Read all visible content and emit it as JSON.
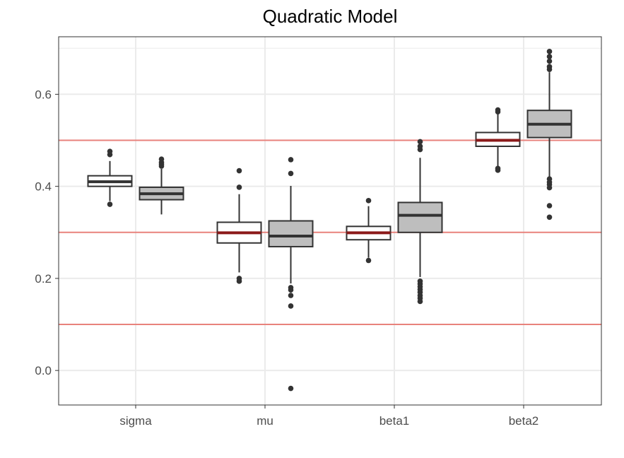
{
  "chart_data": {
    "type": "boxplot",
    "title": "Quadratic Model",
    "xlabel": "",
    "ylabel": "",
    "ylim": [
      -0.075,
      0.725
    ],
    "y_ticks": [
      0.0,
      0.2,
      0.4,
      0.6
    ],
    "y_tick_labels": [
      "0.0",
      "0.2",
      "0.4",
      "0.6"
    ],
    "categories": [
      "sigma",
      "mu",
      "beta1",
      "beta2"
    ],
    "grid": true,
    "reference_lines": [
      0.5,
      0.3,
      0.1
    ],
    "colors": {
      "box_fill_white": "#ffffff",
      "box_fill_grey": "#bebebe",
      "box_stroke": "#333333",
      "reference_line": "#e8827c",
      "true_value_median": "#8b1a1a",
      "grid": "#ebebeb",
      "panel_border": "#333333"
    },
    "series": [
      {
        "name": "white",
        "fill": "#ffffff",
        "boxes": [
          {
            "category": "sigma",
            "q1": 0.4,
            "median": 0.41,
            "q3": 0.423,
            "whisker_low": 0.368,
            "whisker_high": 0.455,
            "outliers": [
              0.361,
              0.469,
              0.476
            ],
            "median_color": "#333333"
          },
          {
            "category": "mu",
            "q1": 0.277,
            "median": 0.299,
            "q3": 0.322,
            "whisker_low": 0.213,
            "whisker_high": 0.383,
            "outliers": [
              0.194,
              0.2,
              0.398,
              0.434
            ],
            "median_color": "#8b1a1a"
          },
          {
            "category": "beta1",
            "q1": 0.284,
            "median": 0.299,
            "q3": 0.313,
            "whisker_low": 0.245,
            "whisker_high": 0.357,
            "outliers": [
              0.239,
              0.369
            ],
            "median_color": "#8b1a1a"
          },
          {
            "category": "beta2",
            "q1": 0.487,
            "median": 0.5,
            "q3": 0.517,
            "whisker_low": 0.443,
            "whisker_high": 0.557,
            "outliers": [
              0.435,
              0.439,
              0.562,
              0.566
            ],
            "median_color": "#8b1a1a"
          }
        ]
      },
      {
        "name": "grey",
        "fill": "#bebebe",
        "boxes": [
          {
            "category": "sigma",
            "q1": 0.371,
            "median": 0.384,
            "q3": 0.398,
            "whisker_low": 0.339,
            "whisker_high": 0.438,
            "outliers": [
              0.444,
              0.448,
              0.452,
              0.459
            ],
            "median_color": "#333333"
          },
          {
            "category": "mu",
            "q1": 0.269,
            "median": 0.292,
            "q3": 0.325,
            "whisker_low": 0.189,
            "whisker_high": 0.401,
            "outliers": [
              -0.039,
              0.14,
              0.163,
              0.175,
              0.18,
              0.428,
              0.458
            ],
            "median_color": "#333333"
          },
          {
            "category": "beta1",
            "q1": 0.3,
            "median": 0.337,
            "q3": 0.365,
            "whisker_low": 0.203,
            "whisker_high": 0.462,
            "outliers": [
              0.15,
              0.157,
              0.163,
              0.17,
              0.176,
              0.182,
              0.188,
              0.194,
              0.48,
              0.487,
              0.497
            ],
            "median_color": "#333333"
          },
          {
            "category": "beta2",
            "q1": 0.506,
            "median": 0.535,
            "q3": 0.565,
            "whisker_low": 0.421,
            "whisker_high": 0.648,
            "outliers": [
              0.333,
              0.358,
              0.397,
              0.404,
              0.409,
              0.416,
              0.654,
              0.66,
              0.672,
              0.682,
              0.693
            ],
            "median_color": "#333333"
          }
        ]
      }
    ]
  }
}
